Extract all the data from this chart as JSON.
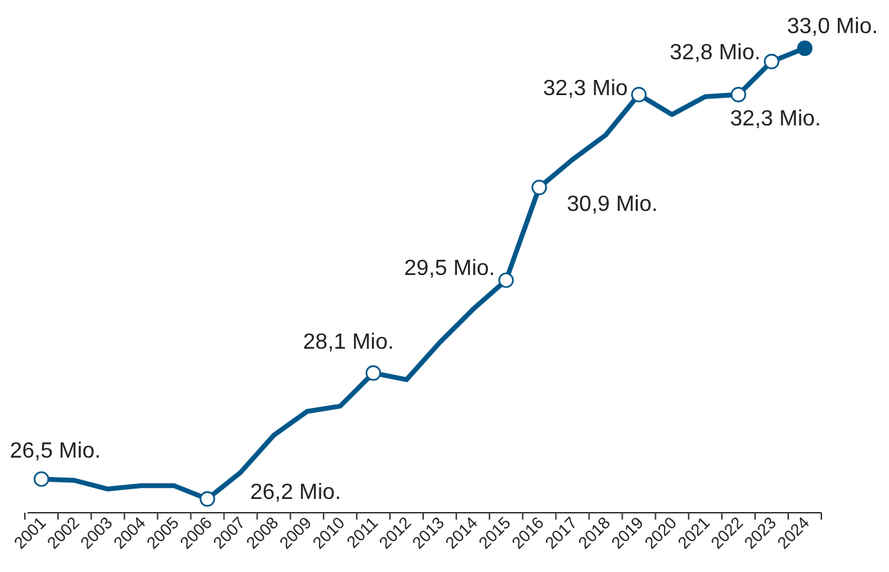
{
  "chart_data": {
    "type": "line",
    "categories": [
      "2001",
      "2002",
      "2003",
      "2004",
      "2005",
      "2006",
      "2007",
      "2008",
      "2009",
      "2010",
      "2011",
      "2012",
      "2013",
      "2014",
      "2015",
      "2016",
      "2017",
      "2018",
      "2019",
      "2020",
      "2021",
      "2022",
      "2023",
      "2024"
    ],
    "series": [
      {
        "color": "#00578a",
        "values": [
          26.5,
          26.48,
          26.35,
          26.4,
          26.4,
          26.2,
          26.6,
          27.16,
          27.52,
          27.6,
          28.1,
          28.0,
          28.56,
          29.06,
          29.5,
          30.9,
          31.32,
          31.69,
          32.3,
          32.0,
          32.27,
          32.3,
          32.8,
          33.0
        ],
        "value_labels": [
          "26,5 Mio.",
          null,
          null,
          null,
          null,
          "26,2 Mio.",
          null,
          null,
          null,
          null,
          "28,1 Mio.",
          null,
          null,
          null,
          "29,5 Mio.",
          "30,9 Mio.",
          null,
          null,
          "32,3 Mio",
          null,
          null,
          "32,3 Mio.",
          "32,8 Mio.",
          "33,0 Mio."
        ]
      }
    ],
    "line_style": "solid"
  }
}
